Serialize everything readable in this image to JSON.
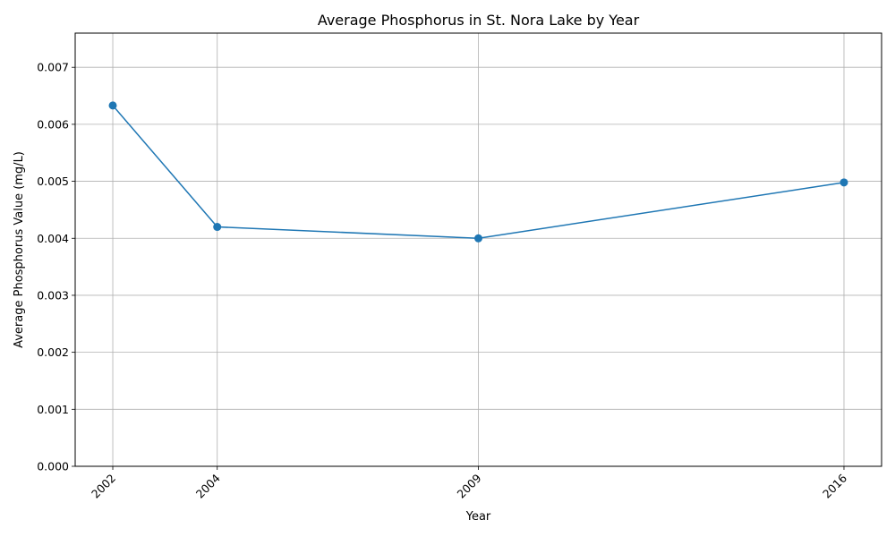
{
  "chart_data": {
    "type": "line",
    "title": "Average Phosphorus in St. Nora Lake by Year",
    "xlabel": "Year",
    "ylabel": "Average Phosphorus Value (mg/L)",
    "x": [
      2002,
      2004,
      2009,
      2016
    ],
    "x_tick_labels": [
      "2002",
      "2004",
      "2009",
      "2016"
    ],
    "xlim": [
      2001.28,
      2016.72
    ],
    "y_ticks": [
      0,
      0.001,
      0.002,
      0.003,
      0.004,
      0.005,
      0.006,
      0.007
    ],
    "y_tick_labels": [
      "0.000",
      "0.001",
      "0.002",
      "0.003",
      "0.004",
      "0.005",
      "0.006",
      "0.007"
    ],
    "ylim": [
      0,
      0.0076
    ],
    "series": [
      {
        "values": [
          0.00633,
          0.0042,
          0.004,
          0.00498
        ],
        "color": "#1f77b4",
        "marker": "circle"
      }
    ],
    "grid": true,
    "legend": "none"
  }
}
